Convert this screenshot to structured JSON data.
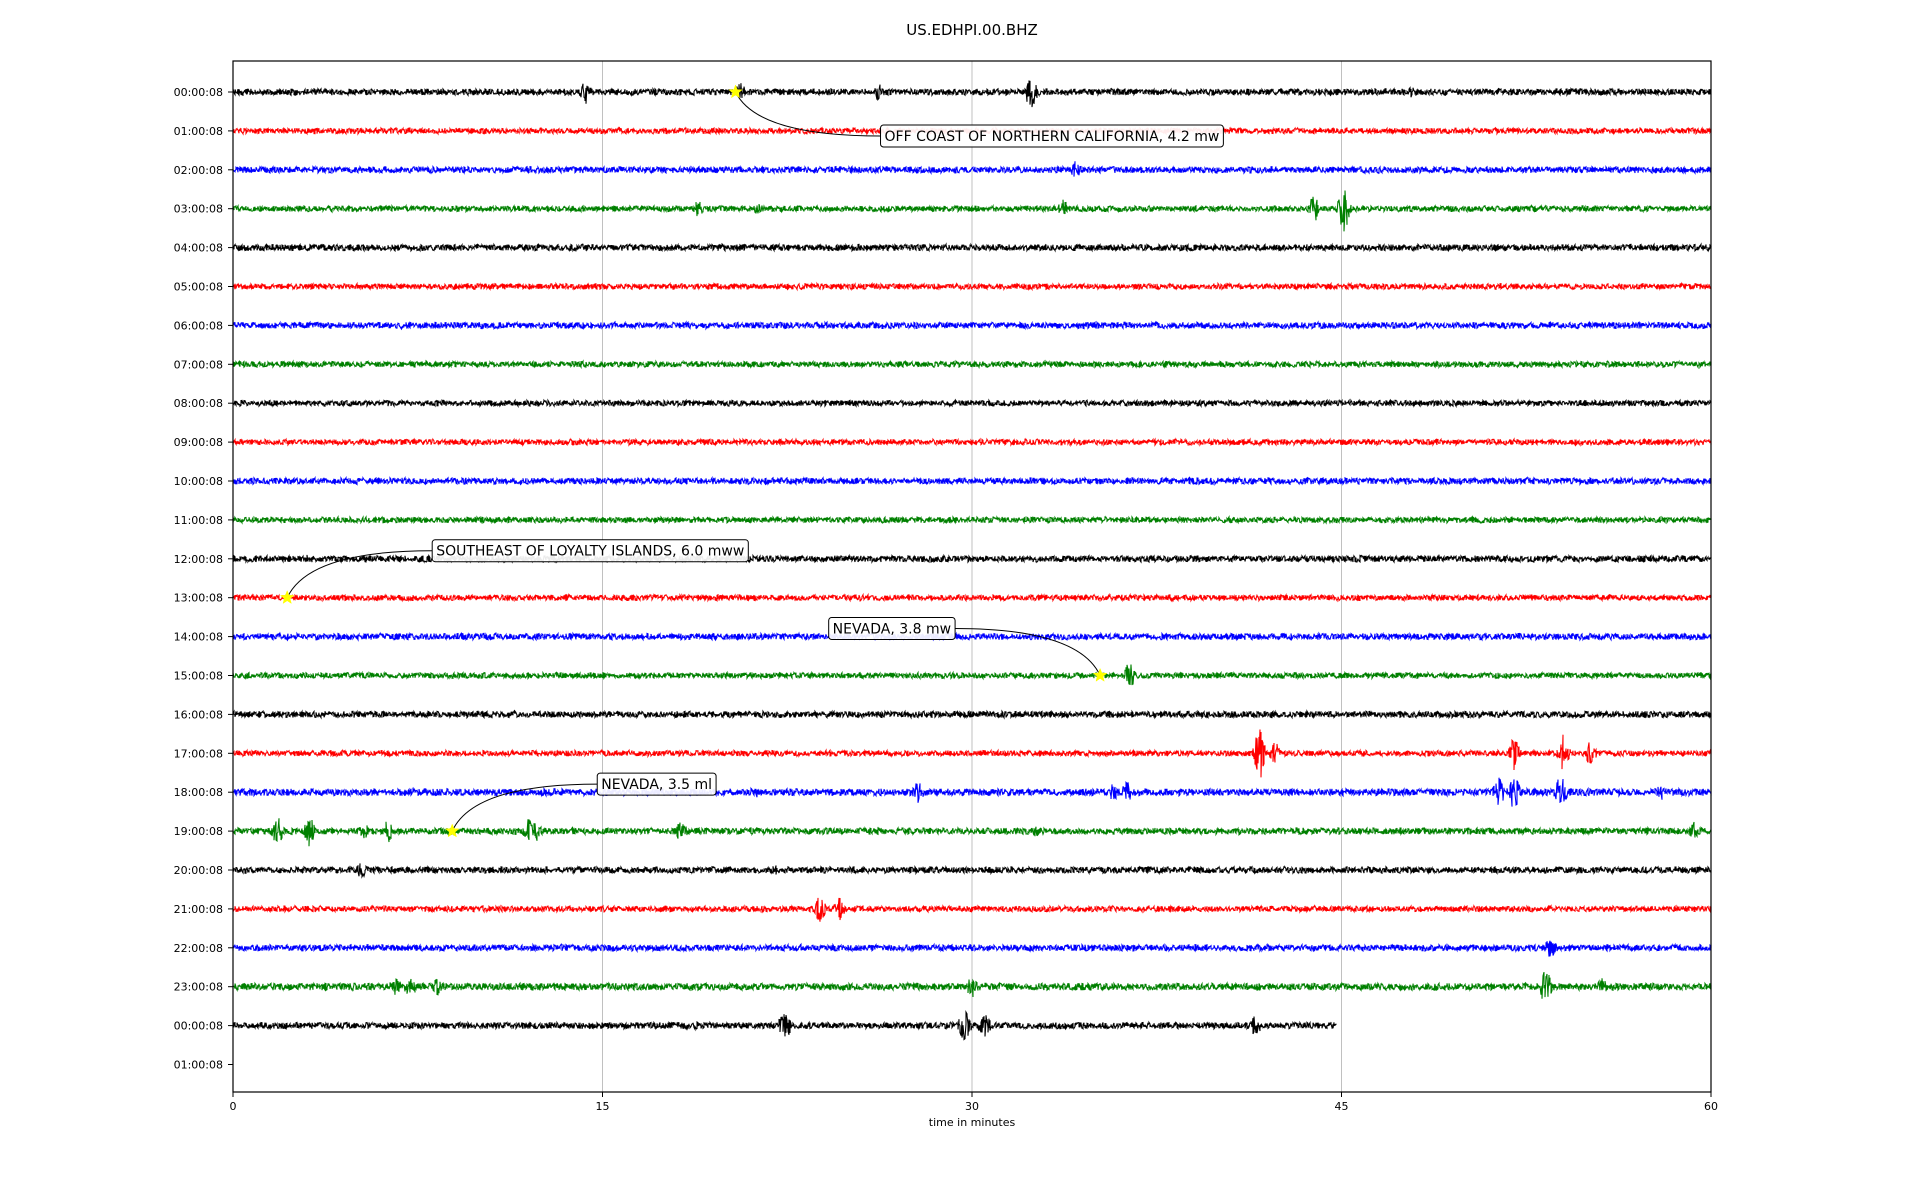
{
  "chart_data": {
    "type": "line",
    "title": "US.EDHPI.00.BHZ",
    "xlabel": "time in minutes",
    "ylabel": "",
    "xlim": [
      0,
      60
    ],
    "xticks": [
      0,
      15,
      30,
      45,
      60
    ],
    "xtick_labels": [
      "0",
      "15",
      "30",
      "45",
      "60"
    ],
    "vertical_grid": true,
    "row_labels": [
      "00:00:08",
      "01:00:08",
      "02:00:08",
      "03:00:08",
      "04:00:08",
      "05:00:08",
      "06:00:08",
      "07:00:08",
      "08:00:08",
      "09:00:08",
      "10:00:08",
      "11:00:08",
      "12:00:08",
      "13:00:08",
      "14:00:08",
      "15:00:08",
      "16:00:08",
      "17:00:08",
      "18:00:08",
      "19:00:08",
      "20:00:08",
      "21:00:08",
      "22:00:08",
      "23:00:08",
      "00:00:08",
      "01:00:08"
    ],
    "trace_colors": [
      "#000000",
      "#ff0000",
      "#0000ff",
      "#008000"
    ],
    "traces": [
      {
        "row": 0,
        "end_minute": 60,
        "noise": 1.0,
        "bursts": [
          [
            14.3,
            4
          ],
          [
            20.6,
            3
          ],
          [
            26.2,
            3
          ],
          [
            32.4,
            6
          ],
          [
            47.8,
            2
          ]
        ]
      },
      {
        "row": 1,
        "end_minute": 60,
        "noise": 0.9,
        "bursts": []
      },
      {
        "row": 2,
        "end_minute": 60,
        "noise": 1.0,
        "bursts": [
          [
            34.2,
            3
          ]
        ]
      },
      {
        "row": 3,
        "end_minute": 60,
        "noise": 0.9,
        "bursts": [
          [
            18.9,
            3
          ],
          [
            21.3,
            2
          ],
          [
            33.7,
            3
          ],
          [
            43.9,
            5
          ],
          [
            45.1,
            8
          ]
        ]
      },
      {
        "row": 4,
        "end_minute": 60,
        "noise": 1.0,
        "bursts": []
      },
      {
        "row": 5,
        "end_minute": 60,
        "noise": 0.9,
        "bursts": []
      },
      {
        "row": 6,
        "end_minute": 60,
        "noise": 1.0,
        "bursts": []
      },
      {
        "row": 7,
        "end_minute": 60,
        "noise": 0.9,
        "bursts": []
      },
      {
        "row": 8,
        "end_minute": 60,
        "noise": 0.9,
        "bursts": []
      },
      {
        "row": 9,
        "end_minute": 60,
        "noise": 0.9,
        "bursts": []
      },
      {
        "row": 10,
        "end_minute": 60,
        "noise": 1.0,
        "bursts": []
      },
      {
        "row": 11,
        "end_minute": 60,
        "noise": 0.9,
        "bursts": []
      },
      {
        "row": 12,
        "end_minute": 60,
        "noise": 1.0,
        "bursts": [
          [
            3.1,
            2
          ]
        ]
      },
      {
        "row": 13,
        "end_minute": 60,
        "noise": 0.9,
        "bursts": [
          [
            13.6,
            2
          ]
        ]
      },
      {
        "row": 14,
        "end_minute": 60,
        "noise": 1.0,
        "bursts": []
      },
      {
        "row": 15,
        "end_minute": 60,
        "noise": 0.9,
        "bursts": [
          [
            36.4,
            5
          ]
        ]
      },
      {
        "row": 16,
        "end_minute": 60,
        "noise": 1.0,
        "bursts": []
      },
      {
        "row": 17,
        "end_minute": 60,
        "noise": 0.9,
        "bursts": [
          [
            41.7,
            10
          ],
          [
            42.3,
            4
          ],
          [
            52.0,
            6
          ],
          [
            54.0,
            6
          ],
          [
            55.1,
            4
          ]
        ]
      },
      {
        "row": 18,
        "end_minute": 60,
        "noise": 1.1,
        "bursts": [
          [
            21.3,
            2
          ],
          [
            27.8,
            4
          ],
          [
            28.6,
            2
          ],
          [
            35.7,
            4
          ],
          [
            36.3,
            4
          ],
          [
            51.4,
            5
          ],
          [
            52.0,
            6
          ],
          [
            53.9,
            6
          ],
          [
            58.0,
            3
          ]
        ]
      },
      {
        "row": 19,
        "end_minute": 60,
        "noise": 1.0,
        "bursts": [
          [
            1.8,
            5
          ],
          [
            3.1,
            5
          ],
          [
            5.3,
            3
          ],
          [
            6.3,
            4
          ],
          [
            12.0,
            4
          ],
          [
            12.3,
            4
          ],
          [
            18.2,
            4
          ],
          [
            32.6,
            2
          ],
          [
            59.3,
            3
          ]
        ]
      },
      {
        "row": 20,
        "end_minute": 60,
        "noise": 1.0,
        "bursts": [
          [
            5.2,
            3
          ],
          [
            22.0,
            2
          ]
        ]
      },
      {
        "row": 21,
        "end_minute": 60,
        "noise": 0.9,
        "bursts": [
          [
            23.8,
            5
          ],
          [
            24.6,
            4
          ]
        ]
      },
      {
        "row": 22,
        "end_minute": 60,
        "noise": 1.0,
        "bursts": [
          [
            53.5,
            4
          ]
        ]
      },
      {
        "row": 23,
        "end_minute": 60,
        "noise": 1.1,
        "bursts": [
          [
            6.6,
            4
          ],
          [
            7.2,
            4
          ],
          [
            8.3,
            3
          ],
          [
            30.0,
            4
          ],
          [
            53.3,
            7
          ],
          [
            55.6,
            3
          ]
        ]
      },
      {
        "row": 24,
        "end_minute": 44.8,
        "noise": 1.0,
        "bursts": [
          [
            18.9,
            2
          ],
          [
            22.4,
            6
          ],
          [
            29.7,
            6
          ],
          [
            30.5,
            5
          ],
          [
            41.5,
            4
          ]
        ]
      }
    ],
    "events": [
      {
        "label": "OFF COAST OF NORTHERN CALIFORNIA, 4.2 mw",
        "row": 0,
        "minute": 20.4
      },
      {
        "label": "SOUTHEAST OF LOYALTY ISLANDS, 6.0 mww",
        "row": 13,
        "minute": 2.2
      },
      {
        "label": "NEVADA, 3.8 mw",
        "row": 15,
        "minute": 35.2
      },
      {
        "label": "NEVADA, 3.5 ml",
        "row": 19,
        "minute": 8.9
      }
    ],
    "event_marker_color": "#ffff00"
  }
}
